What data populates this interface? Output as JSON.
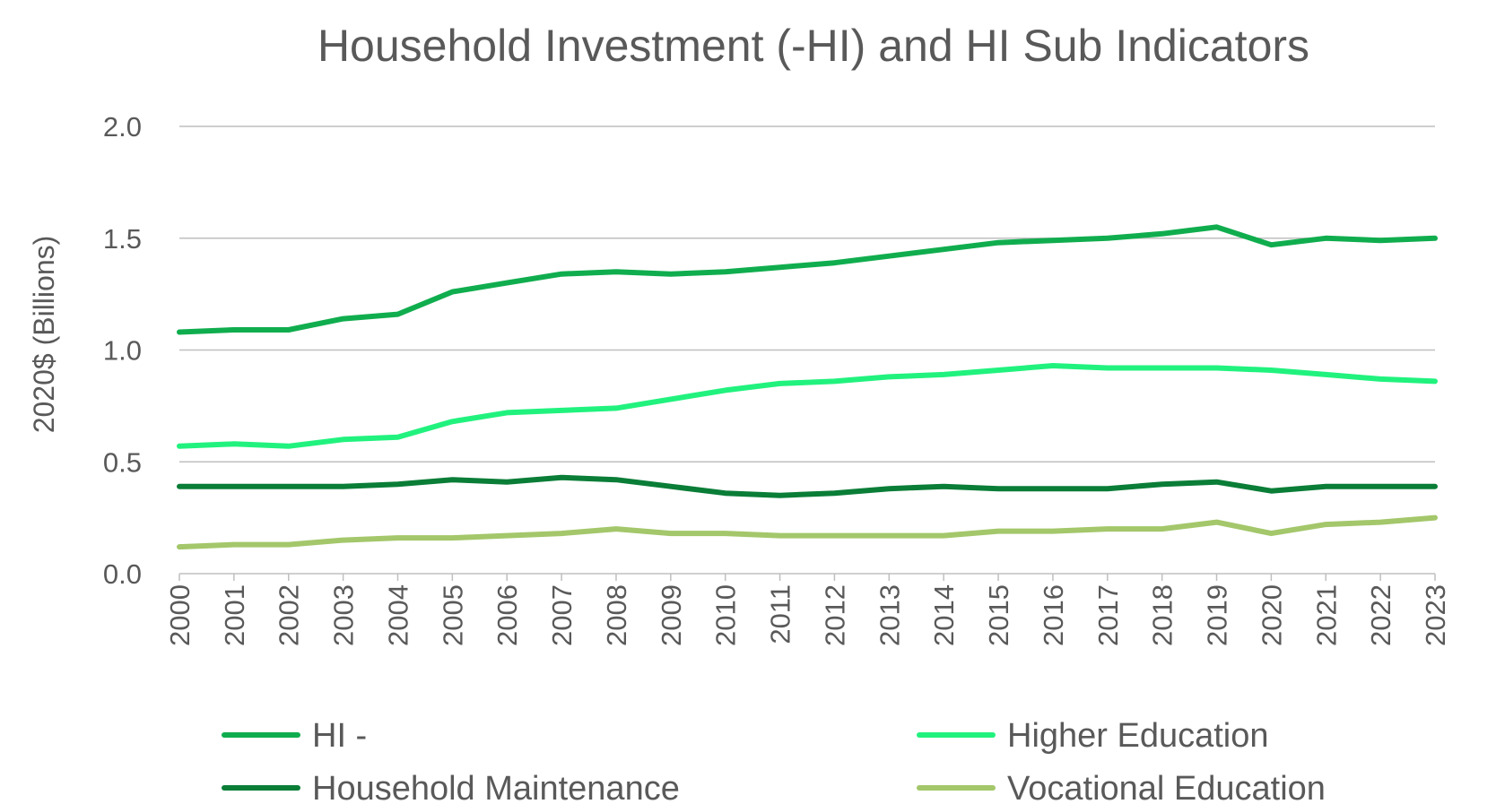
{
  "chart_data": {
    "type": "line",
    "title": "Household Investment (-HI) and HI Sub Indicators",
    "ylabel": "2020$ (Billions)",
    "xlabel": "",
    "ylim": [
      0,
      2.0
    ],
    "yticks": [
      "0.0",
      "0.5",
      "1.0",
      "1.5",
      "2.0"
    ],
    "ytick_values": [
      0,
      0.5,
      1.0,
      1.5,
      2.0
    ],
    "grid": true,
    "legend_position": "bottom",
    "categories": [
      "2000",
      "2001",
      "2002",
      "2003",
      "2004",
      "2005",
      "2006",
      "2007",
      "2008",
      "2009",
      "2010",
      "2011",
      "2012",
      "2013",
      "2014",
      "2015",
      "2016",
      "2017",
      "2018",
      "2019",
      "2020",
      "2021",
      "2022",
      "2023"
    ],
    "series": [
      {
        "name": "HI -",
        "color": "#10ad4e",
        "values": [
          1.08,
          1.09,
          1.09,
          1.14,
          1.16,
          1.26,
          1.3,
          1.34,
          1.35,
          1.34,
          1.35,
          1.37,
          1.39,
          1.42,
          1.45,
          1.48,
          1.49,
          1.5,
          1.52,
          1.55,
          1.47,
          1.5,
          1.49,
          1.5
        ]
      },
      {
        "name": "Higher Education",
        "color": "#21f27e",
        "values": [
          0.57,
          0.58,
          0.57,
          0.6,
          0.61,
          0.68,
          0.72,
          0.73,
          0.74,
          0.78,
          0.82,
          0.85,
          0.86,
          0.88,
          0.89,
          0.91,
          0.93,
          0.92,
          0.92,
          0.92,
          0.91,
          0.89,
          0.87,
          0.86
        ]
      },
      {
        "name": "Household Maintenance",
        "color": "#0a7d37",
        "values": [
          0.39,
          0.39,
          0.39,
          0.39,
          0.4,
          0.42,
          0.41,
          0.43,
          0.42,
          0.39,
          0.36,
          0.35,
          0.36,
          0.38,
          0.39,
          0.38,
          0.38,
          0.38,
          0.4,
          0.41,
          0.37,
          0.39,
          0.39,
          0.39
        ]
      },
      {
        "name": "Vocational Education",
        "color": "#a3c76a",
        "values": [
          0.12,
          0.13,
          0.13,
          0.15,
          0.16,
          0.16,
          0.17,
          0.18,
          0.2,
          0.18,
          0.18,
          0.17,
          0.17,
          0.17,
          0.17,
          0.19,
          0.19,
          0.2,
          0.2,
          0.23,
          0.18,
          0.22,
          0.23,
          0.25
        ]
      }
    ]
  }
}
